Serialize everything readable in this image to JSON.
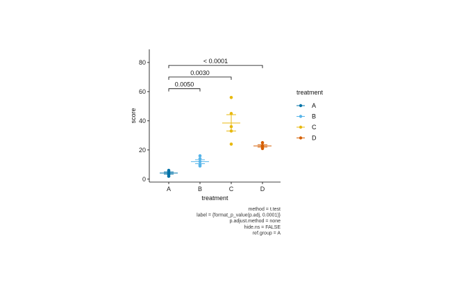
{
  "chart_data": {
    "type": "scatter",
    "title": "",
    "xlabel": "treatment",
    "ylabel": "score",
    "categories": [
      "A",
      "B",
      "C",
      "D"
    ],
    "yticks": [
      0,
      20,
      40,
      60,
      80
    ],
    "ylim": [
      -2,
      89
    ],
    "grid": false,
    "legend": {
      "title": "treatment",
      "position": "right",
      "entries": [
        "A",
        "B",
        "C",
        "D"
      ]
    },
    "colors": {
      "A": "#0073A8",
      "B": "#56B4E9",
      "C": "#E8B90F",
      "D": "#D55E00"
    },
    "series": [
      {
        "name": "A",
        "points": [
          6,
          5,
          4,
          3,
          2
        ],
        "mean": 4.2,
        "se_low": 3.5,
        "se_high": 4.9
      },
      {
        "name": "B",
        "points": [
          16,
          14,
          12,
          10,
          9
        ],
        "mean": 12,
        "se_low": 10.6,
        "se_high": 13.3
      },
      {
        "name": "C",
        "points": [
          56,
          45,
          36,
          33,
          24
        ],
        "mean": 38.5,
        "se_low": 33.0,
        "se_high": 44.2
      },
      {
        "name": "D",
        "points": [
          25,
          23,
          22,
          21
        ],
        "mean": 22.8,
        "se_low": 22.0,
        "se_high": 23.6
      }
    ],
    "comparisons": [
      {
        "group1": "A",
        "group2": "B",
        "label": "0.0050",
        "y": 62
      },
      {
        "group1": "A",
        "group2": "C",
        "label": "0.0030",
        "y": 70
      },
      {
        "group1": "A",
        "group2": "D",
        "label": "< 0.0001",
        "y": 78
      }
    ]
  },
  "caption": [
    "method = t.test",
    "label = {format_p_value(p.adj, 0.0001)}",
    "p.adjust.method = none",
    "hide.ns = FALSE",
    "ref.group = A"
  ]
}
